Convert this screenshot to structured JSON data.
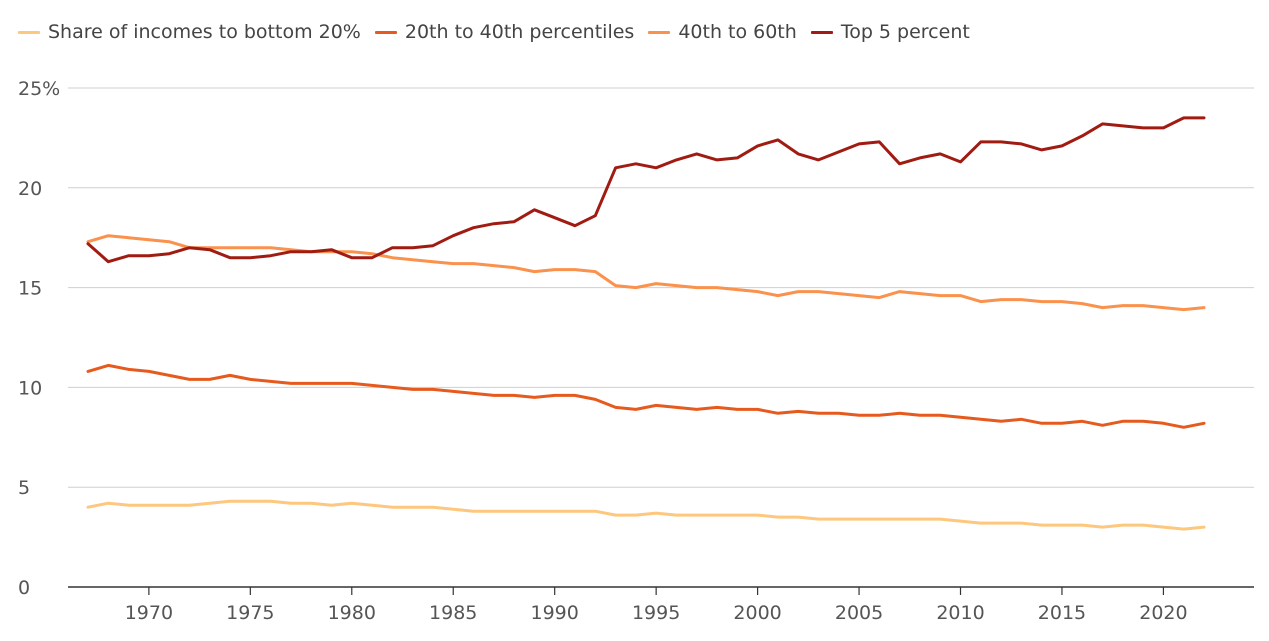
{
  "chart_data": {
    "type": "line",
    "title": "",
    "xlabel": "",
    "ylabel": "",
    "xlim": [
      1967,
      2022
    ],
    "ylim": [
      0,
      25
    ],
    "y_ticks": [
      0,
      5,
      10,
      15,
      20,
      25
    ],
    "y_tick_labels": [
      "0",
      "5",
      "10",
      "15",
      "20",
      "25%"
    ],
    "x_ticks": [
      1970,
      1975,
      1980,
      1985,
      1990,
      1995,
      2000,
      2005,
      2010,
      2015,
      2020
    ],
    "x_tick_labels": [
      "1970",
      "1975",
      "1980",
      "1985",
      "1990",
      "1995",
      "2000",
      "2005",
      "2010",
      "2015",
      "2020"
    ],
    "grid": "horizontal",
    "legend_position": "top-left",
    "x": [
      1967,
      1968,
      1969,
      1970,
      1971,
      1972,
      1973,
      1974,
      1975,
      1976,
      1977,
      1978,
      1979,
      1980,
      1981,
      1982,
      1983,
      1984,
      1985,
      1986,
      1987,
      1988,
      1989,
      1990,
      1991,
      1992,
      1993,
      1994,
      1995,
      1996,
      1997,
      1998,
      1999,
      2000,
      2001,
      2002,
      2003,
      2004,
      2005,
      2006,
      2007,
      2008,
      2009,
      2010,
      2011,
      2012,
      2013,
      2014,
      2015,
      2016,
      2017,
      2018,
      2019,
      2020,
      2021,
      2022
    ],
    "series": [
      {
        "name": "Share of incomes to bottom 20%",
        "color": "#fdc77e",
        "values": [
          4.0,
          4.2,
          4.1,
          4.1,
          4.1,
          4.1,
          4.2,
          4.3,
          4.3,
          4.3,
          4.2,
          4.2,
          4.1,
          4.2,
          4.1,
          4.0,
          4.0,
          4.0,
          3.9,
          3.8,
          3.8,
          3.8,
          3.8,
          3.8,
          3.8,
          3.8,
          3.6,
          3.6,
          3.7,
          3.6,
          3.6,
          3.6,
          3.6,
          3.6,
          3.5,
          3.5,
          3.4,
          3.4,
          3.4,
          3.4,
          3.4,
          3.4,
          3.4,
          3.3,
          3.2,
          3.2,
          3.2,
          3.1,
          3.1,
          3.1,
          3.0,
          3.1,
          3.1,
          3.0,
          2.9,
          3.0
        ]
      },
      {
        "name": "20th to 40th percentiles",
        "color": "#e65a1e",
        "values": [
          10.8,
          11.1,
          10.9,
          10.8,
          10.6,
          10.4,
          10.4,
          10.6,
          10.4,
          10.3,
          10.2,
          10.2,
          10.2,
          10.2,
          10.1,
          10.0,
          9.9,
          9.9,
          9.8,
          9.7,
          9.6,
          9.6,
          9.5,
          9.6,
          9.6,
          9.4,
          9.0,
          8.9,
          9.1,
          9.0,
          8.9,
          9.0,
          8.9,
          8.9,
          8.7,
          8.8,
          8.7,
          8.7,
          8.6,
          8.6,
          8.7,
          8.6,
          8.6,
          8.5,
          8.4,
          8.3,
          8.4,
          8.2,
          8.2,
          8.3,
          8.1,
          8.3,
          8.3,
          8.2,
          8.0,
          8.2
        ]
      },
      {
        "name": "40th to 60th",
        "color": "#fa914c",
        "values": [
          17.3,
          17.6,
          17.5,
          17.4,
          17.3,
          17.0,
          17.0,
          17.0,
          17.0,
          17.0,
          16.9,
          16.8,
          16.8,
          16.8,
          16.7,
          16.5,
          16.4,
          16.3,
          16.2,
          16.2,
          16.1,
          16.0,
          15.8,
          15.9,
          15.9,
          15.8,
          15.1,
          15.0,
          15.2,
          15.1,
          15.0,
          15.0,
          14.9,
          14.8,
          14.6,
          14.8,
          14.8,
          14.7,
          14.6,
          14.5,
          14.8,
          14.7,
          14.6,
          14.6,
          14.3,
          14.4,
          14.4,
          14.3,
          14.3,
          14.2,
          14.0,
          14.1,
          14.1,
          14.0,
          13.9,
          14.0
        ]
      },
      {
        "name": "Top 5 percent",
        "color": "#a01c12",
        "values": [
          17.2,
          16.3,
          16.6,
          16.6,
          16.7,
          17.0,
          16.9,
          16.5,
          16.5,
          16.6,
          16.8,
          16.8,
          16.9,
          16.5,
          16.5,
          17.0,
          17.0,
          17.1,
          17.6,
          18.0,
          18.2,
          18.3,
          18.9,
          18.5,
          18.1,
          18.6,
          21.0,
          21.2,
          21.0,
          21.4,
          21.7,
          21.4,
          21.5,
          22.1,
          22.4,
          21.7,
          21.4,
          21.8,
          22.2,
          22.3,
          21.2,
          21.5,
          21.7,
          21.3,
          22.3,
          22.3,
          22.2,
          21.9,
          22.1,
          22.6,
          23.2,
          23.1,
          23.0,
          23.0,
          23.5,
          23.5
        ]
      }
    ]
  }
}
